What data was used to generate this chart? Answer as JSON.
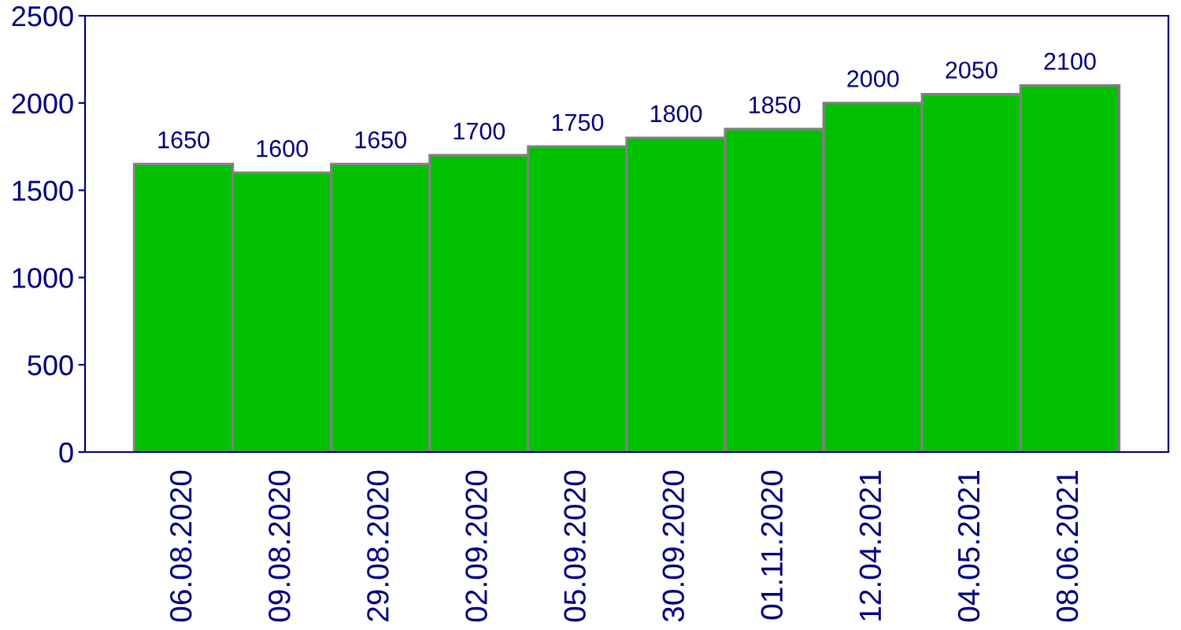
{
  "chart_data": {
    "type": "bar",
    "categories": [
      "06.08.2020",
      "09.08.2020",
      "29.08.2020",
      "02.09.2020",
      "05.09.2020",
      "30.09.2020",
      "01.11.2020",
      "12.04.2021",
      "04.05.2021",
      "08.06.2021"
    ],
    "values": [
      1650,
      1600,
      1650,
      1700,
      1750,
      1800,
      1850,
      2000,
      2050,
      2100
    ],
    "color": "#00c000",
    "ylim": [
      0,
      2500
    ],
    "yticks": [
      0,
      500,
      1000,
      1500,
      2000,
      2500
    ],
    "data_labels": true,
    "grid": false,
    "legend": false
  }
}
